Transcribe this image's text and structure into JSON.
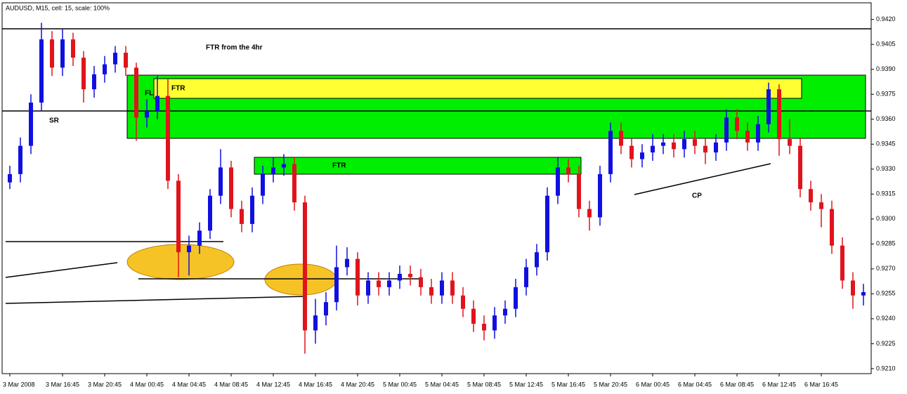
{
  "chart_data": {
    "type": "candlestick",
    "title": "AUDUSD, M15, cell: 15, scale: 100%",
    "categories": [
      "3 Mar 2008",
      null,
      null,
      null,
      null,
      "3 Mar 16:45",
      null,
      null,
      null,
      "3 Mar 20:45",
      null,
      null,
      null,
      "4 Mar 00:45",
      null,
      null,
      null,
      "4 Mar 04:45",
      null,
      null,
      null,
      "4 Mar 08:45",
      null,
      null,
      null,
      "4 Mar 12:45",
      null,
      null,
      null,
      "4 Mar 16:45",
      null,
      null,
      null,
      "4 Mar 20:45",
      null,
      null,
      null,
      "5 Mar 00:45",
      null,
      null,
      null,
      "5 Mar 04:45",
      null,
      null,
      null,
      "5 Mar 08:45",
      null,
      null,
      null,
      "5 Mar 12:45",
      null,
      null,
      null,
      "5 Mar 16:45",
      null,
      null,
      null,
      "5 Mar 20:45",
      null,
      null,
      null,
      "6 Mar 00:45",
      null,
      null,
      null,
      "6 Mar 04:45",
      null,
      null,
      null,
      "6 Mar 08:45",
      null,
      null,
      null,
      "6 Mar 12:45",
      null,
      null,
      null,
      "6 Mar 16:45",
      null,
      null,
      null,
      null
    ],
    "open": [
      0.9322,
      0.9327,
      0.9344,
      0.937,
      0.9408,
      0.9391,
      0.9408,
      0.9397,
      0.9378,
      0.9387,
      0.9393,
      0.94,
      0.9391,
      0.9361,
      0.9365,
      0.9374,
      0.9323,
      0.928,
      0.9284,
      0.9293,
      0.9314,
      0.9331,
      0.9306,
      0.9297,
      0.9314,
      0.9327,
      0.9331,
      0.9333,
      0.931,
      0.9233,
      0.9242,
      0.925,
      0.9271,
      0.9276,
      0.9254,
      0.9263,
      0.9259,
      0.9263,
      0.9267,
      0.9265,
      0.9259,
      0.9254,
      0.9263,
      0.9254,
      0.9246,
      0.9237,
      0.9233,
      0.9242,
      0.9246,
      0.9259,
      0.9271,
      0.928,
      0.9314,
      0.9331,
      0.9327,
      0.9306,
      0.9301,
      0.9327,
      0.9353,
      0.9344,
      0.9336,
      0.934,
      0.9344,
      0.9346,
      0.9342,
      0.9348,
      0.9344,
      0.934,
      0.9346,
      0.9361,
      0.9353,
      0.9346,
      0.9357,
      0.9378,
      0.9348,
      0.9344,
      0.9318,
      0.931,
      0.9306,
      0.9284,
      0.9263,
      0.9254
    ],
    "high": [
      0.9332,
      0.9349,
      0.9375,
      0.9418,
      0.9413,
      0.9414,
      0.9412,
      0.9401,
      0.9392,
      0.9398,
      0.9404,
      0.9404,
      0.9394,
      0.9372,
      0.9386,
      0.9384,
      0.9327,
      0.929,
      0.9298,
      0.9318,
      0.9342,
      0.9335,
      0.9311,
      0.9319,
      0.9332,
      0.9337,
      0.9339,
      0.9337,
      0.9314,
      0.9252,
      0.9256,
      0.9284,
      0.9283,
      0.928,
      0.9268,
      0.9268,
      0.9268,
      0.9272,
      0.9272,
      0.927,
      0.9264,
      0.9268,
      0.9268,
      0.9259,
      0.9251,
      0.9242,
      0.9247,
      0.9251,
      0.9264,
      0.9276,
      0.9285,
      0.9319,
      0.9337,
      0.9336,
      0.9332,
      0.9311,
      0.9332,
      0.9358,
      0.9358,
      0.9349,
      0.9345,
      0.9351,
      0.9351,
      0.9351,
      0.9353,
      0.9353,
      0.9349,
      0.9351,
      0.9366,
      0.9366,
      0.9358,
      0.9362,
      0.9382,
      0.9381,
      0.936,
      0.9349,
      0.9323,
      0.9315,
      0.9311,
      0.9289,
      0.9268,
      0.9261
    ],
    "low": [
      0.9318,
      0.9322,
      0.9339,
      0.9365,
      0.9386,
      0.9386,
      0.9392,
      0.937,
      0.9373,
      0.9382,
      0.9388,
      0.9386,
      0.9347,
      0.9355,
      0.936,
      0.9318,
      0.9265,
      0.9266,
      0.9279,
      0.9288,
      0.9309,
      0.9301,
      0.9292,
      0.9292,
      0.9309,
      0.9322,
      0.9326,
      0.9305,
      0.9219,
      0.9225,
      0.9236,
      0.9245,
      0.9266,
      0.9248,
      0.9249,
      0.9254,
      0.9254,
      0.9258,
      0.926,
      0.9254,
      0.9249,
      0.9249,
      0.9249,
      0.9241,
      0.9232,
      0.9227,
      0.9228,
      0.9237,
      0.9241,
      0.9254,
      0.9266,
      0.9275,
      0.9309,
      0.9322,
      0.9301,
      0.9293,
      0.9296,
      0.9322,
      0.9339,
      0.9331,
      0.9331,
      0.9335,
      0.9339,
      0.9337,
      0.9337,
      0.9339,
      0.9333,
      0.9335,
      0.9341,
      0.9348,
      0.9341,
      0.9341,
      0.9352,
      0.9338,
      0.9339,
      0.9313,
      0.9305,
      0.9295,
      0.9279,
      0.9258,
      0.9246,
      0.9248
    ],
    "close": [
      0.9327,
      0.9344,
      0.937,
      0.9408,
      0.9391,
      0.9408,
      0.9397,
      0.9378,
      0.9387,
      0.9393,
      0.94,
      0.9391,
      0.9361,
      0.9365,
      0.9374,
      0.9323,
      0.928,
      0.9284,
      0.9293,
      0.9314,
      0.9331,
      0.9306,
      0.9297,
      0.9314,
      0.9327,
      0.9331,
      0.9333,
      0.931,
      0.9233,
      0.9242,
      0.925,
      0.9271,
      0.9276,
      0.9254,
      0.9263,
      0.9259,
      0.9263,
      0.9267,
      0.9265,
      0.9259,
      0.9254,
      0.9263,
      0.9254,
      0.9246,
      0.9237,
      0.9233,
      0.9242,
      0.9246,
      0.9259,
      0.9271,
      0.928,
      0.9314,
      0.9331,
      0.9327,
      0.9306,
      0.9301,
      0.9327,
      0.9353,
      0.9344,
      0.9336,
      0.934,
      0.9344,
      0.9346,
      0.9342,
      0.9348,
      0.9344,
      0.934,
      0.9346,
      0.9361,
      0.9353,
      0.9346,
      0.9357,
      0.9378,
      0.9348,
      0.9344,
      0.9318,
      0.931,
      0.9306,
      0.9284,
      0.9263,
      0.9254,
      0.9256
    ],
    "up_color": "#1010e0",
    "down_color": "#e0141c",
    "ylim": [
      0.9207,
      0.943
    ],
    "yticks": [
      {
        "value": 0.921,
        "label": "0.9210"
      },
      0.9225,
      {
        "value": 0.924,
        "label": "0.9240"
      },
      0.9255,
      {
        "value": 0.927,
        "label": "0.9270"
      },
      0.9285,
      {
        "value": 0.93,
        "label": "0.9300"
      },
      0.9315,
      {
        "value": 0.933,
        "label": "0.9330"
      },
      0.9345,
      {
        "value": 0.936,
        "label": "0.9360"
      },
      0.9375,
      {
        "value": 0.939,
        "label": "0.9390"
      },
      0.9405,
      {
        "value": 0.942,
        "label": "0.9420"
      }
    ],
    "annotations": [
      "FTR from the 4hr",
      "FL",
      "FTR",
      "FTR",
      "SR",
      "CP"
    ]
  }
}
